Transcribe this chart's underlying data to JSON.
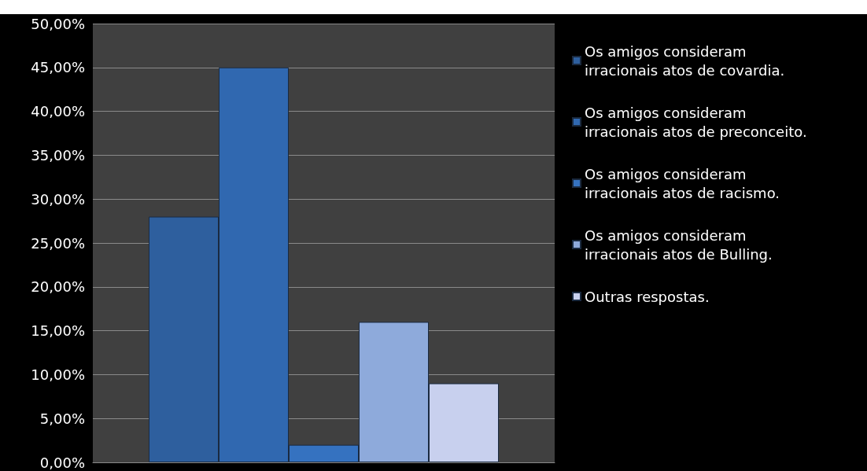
{
  "chart_data": {
    "type": "bar",
    "categories": [
      null
    ],
    "series": [
      {
        "name": "Os amigos consideram irracionais atos de covardia.",
        "color": "#2e5f9e",
        "values": [
          28
        ]
      },
      {
        "name": "Os amigos consideram irracionais atos de preconceito.",
        "color": "#3068b0",
        "values": [
          45
        ]
      },
      {
        "name": "Os amigos consideram irracionais atos de racismo.",
        "color": "#3572c0",
        "values": [
          2
        ]
      },
      {
        "name": "Os amigos consideram irracionais atos de Bulling.",
        "color": "#8eaadb",
        "values": [
          16
        ]
      },
      {
        "name": "Outras respostas.",
        "color": "#c8d0ee",
        "values": [
          9
        ]
      }
    ],
    "ylim": [
      0,
      50
    ],
    "yticks": [
      {
        "value": 0,
        "label": "0,00%"
      },
      {
        "value": 5,
        "label": "5,00%"
      },
      {
        "value": 10,
        "label": "10,00%"
      },
      {
        "value": 15,
        "label": "15,00%"
      },
      {
        "value": 20,
        "label": "20,00%"
      },
      {
        "value": 25,
        "label": "25,00%"
      },
      {
        "value": 30,
        "label": "30,00%"
      },
      {
        "value": 35,
        "label": "35,00%"
      },
      {
        "value": 40,
        "label": "40,00%"
      },
      {
        "value": 45,
        "label": "45,00%"
      },
      {
        "value": 50,
        "label": "50,00%"
      }
    ],
    "grid": "y",
    "legend": "right"
  }
}
